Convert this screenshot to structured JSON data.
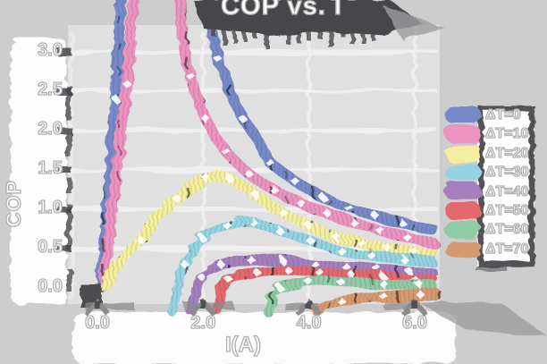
{
  "title": "COP vs. I",
  "figure": {
    "bg": "#cdcdcd",
    "plot_bg": "#e0e0e0",
    "grid_color": "#f2f2f2",
    "ink_color": "#45454a",
    "text_fill": "#ffffff",
    "text_outline": "#b0b0b0"
  },
  "axes": {
    "xlabel": "I(A)",
    "ylabel": "COP",
    "x_ticks": [
      {
        "v": 0,
        "label": "0.0"
      },
      {
        "v": 2,
        "label": "2.0"
      },
      {
        "v": 4,
        "label": "4.0"
      },
      {
        "v": 6,
        "label": "6.0"
      }
    ],
    "y_ticks": [
      {
        "v": 3.0,
        "label": "3.0"
      },
      {
        "v": 2.5,
        "label": "2.5"
      },
      {
        "v": 2.0,
        "label": "2.0"
      },
      {
        "v": 1.5,
        "label": "1.5"
      },
      {
        "v": 1.0,
        "label": "1.0"
      },
      {
        "v": 0.5,
        "label": "0.5"
      },
      {
        "v": 0.0,
        "label": "0.0"
      }
    ]
  },
  "chart_data": {
    "type": "line",
    "title": "COP vs. I",
    "xlabel": "I(A)",
    "ylabel": "COP",
    "xlim": [
      0,
      6.5
    ],
    "ylim": [
      0,
      3.0
    ],
    "grid": true,
    "legend_position": "right",
    "style": "paint-brush ribbons with open diamond markers",
    "series": [
      {
        "name": "ΔT=0",
        "color": "#7689c8",
        "points": [
          [
            0.05,
            0
          ],
          [
            0.2,
            1.1
          ],
          [
            0.35,
            2.4
          ],
          [
            0.5,
            4.4
          ],
          [
            2.02,
            4.4
          ],
          [
            2.18,
            3.2
          ],
          [
            2.3,
            2.9
          ],
          [
            2.5,
            2.5
          ],
          [
            2.75,
            2.15
          ],
          [
            3.0,
            1.92
          ],
          [
            3.25,
            1.6
          ],
          [
            3.5,
            1.47
          ],
          [
            3.75,
            1.35
          ],
          [
            4.0,
            1.25
          ],
          [
            4.25,
            1.16
          ],
          [
            4.5,
            1.08
          ],
          [
            4.75,
            1.02
          ],
          [
            5.0,
            0.97
          ],
          [
            5.25,
            0.92
          ],
          [
            5.5,
            0.87
          ],
          [
            5.75,
            0.83
          ],
          [
            6.0,
            0.79
          ],
          [
            6.35,
            0.74
          ]
        ]
      },
      {
        "name": "ΔT=10",
        "color": "#ec93c0",
        "points": [
          [
            0.1,
            0
          ],
          [
            0.3,
            1.1
          ],
          [
            0.55,
            2.6
          ],
          [
            0.78,
            4.4
          ],
          [
            1.5,
            4.4
          ],
          [
            1.62,
            3.1
          ],
          [
            1.75,
            2.7
          ],
          [
            1.9,
            2.4
          ],
          [
            2.05,
            2.15
          ],
          [
            2.25,
            1.9
          ],
          [
            2.45,
            1.72
          ],
          [
            2.65,
            1.58
          ],
          [
            2.85,
            1.46
          ],
          [
            3.1,
            1.34
          ],
          [
            3.35,
            1.24
          ],
          [
            3.6,
            1.15
          ],
          [
            3.85,
            1.08
          ],
          [
            4.1,
            1.01
          ],
          [
            4.35,
            0.95
          ],
          [
            4.6,
            0.89
          ],
          [
            4.85,
            0.83
          ],
          [
            5.1,
            0.78
          ],
          [
            5.35,
            0.73
          ],
          [
            5.6,
            0.69
          ],
          [
            5.85,
            0.65
          ],
          [
            6.1,
            0.61
          ],
          [
            6.35,
            0.57
          ]
        ]
      },
      {
        "name": "ΔT=20",
        "color": "#f4ef9e",
        "points": [
          [
            0.08,
            0
          ],
          [
            0.4,
            0.3
          ],
          [
            0.8,
            0.62
          ],
          [
            1.2,
            0.94
          ],
          [
            1.5,
            1.14
          ],
          [
            1.8,
            1.3
          ],
          [
            2.05,
            1.4
          ],
          [
            2.25,
            1.43
          ],
          [
            2.5,
            1.39
          ],
          [
            2.75,
            1.3
          ],
          [
            3.0,
            1.18
          ],
          [
            3.25,
            1.06
          ],
          [
            3.5,
            0.96
          ],
          [
            3.75,
            0.87
          ],
          [
            4.0,
            0.79
          ],
          [
            4.25,
            0.72
          ],
          [
            4.5,
            0.66
          ],
          [
            4.75,
            0.61
          ],
          [
            5.0,
            0.57
          ],
          [
            5.25,
            0.53
          ],
          [
            5.5,
            0.5
          ],
          [
            5.75,
            0.48
          ],
          [
            6.0,
            0.46
          ],
          [
            6.35,
            0.44
          ]
        ]
      },
      {
        "name": "ΔT=30",
        "color": "#94d4e2",
        "points": [
          [
            1.42,
            -0.3
          ],
          [
            1.52,
            0.05
          ],
          [
            1.65,
            0.3
          ],
          [
            1.8,
            0.48
          ],
          [
            2.0,
            0.62
          ],
          [
            2.2,
            0.72
          ],
          [
            2.45,
            0.8
          ],
          [
            2.7,
            0.84
          ],
          [
            2.95,
            0.83
          ],
          [
            3.2,
            0.78
          ],
          [
            3.45,
            0.72
          ],
          [
            3.7,
            0.67
          ],
          [
            4.0,
            0.62
          ],
          [
            4.3,
            0.55
          ],
          [
            4.6,
            0.48
          ],
          [
            4.9,
            0.43
          ],
          [
            5.2,
            0.4
          ],
          [
            5.5,
            0.38
          ],
          [
            5.8,
            0.36
          ],
          [
            6.1,
            0.35
          ],
          [
            6.35,
            0.33
          ]
        ]
      },
      {
        "name": "ΔT=40",
        "color": "#a57ebd",
        "points": [
          [
            1.78,
            -0.3
          ],
          [
            1.88,
            -0.02
          ],
          [
            2.0,
            0.12
          ],
          [
            2.15,
            0.22
          ],
          [
            2.35,
            0.29
          ],
          [
            2.6,
            0.34
          ],
          [
            2.9,
            0.36
          ],
          [
            3.2,
            0.36
          ],
          [
            3.5,
            0.35
          ],
          [
            3.8,
            0.33
          ],
          [
            4.1,
            0.31
          ],
          [
            4.4,
            0.29
          ],
          [
            4.7,
            0.27
          ],
          [
            5.0,
            0.26
          ],
          [
            5.3,
            0.24
          ],
          [
            5.6,
            0.23
          ],
          [
            5.9,
            0.21
          ],
          [
            6.35,
            0.19
          ]
        ]
      },
      {
        "name": "ΔT=50",
        "color": "#e4686c",
        "points": [
          [
            2.25,
            -0.3
          ],
          [
            2.35,
            -0.02
          ],
          [
            2.5,
            0.1
          ],
          [
            2.7,
            0.17
          ],
          [
            3.0,
            0.21
          ],
          [
            3.3,
            0.23
          ],
          [
            3.6,
            0.23
          ],
          [
            3.9,
            0.22
          ],
          [
            4.2,
            0.2
          ],
          [
            4.5,
            0.18
          ],
          [
            4.8,
            0.17
          ],
          [
            5.1,
            0.15
          ],
          [
            5.4,
            0.14
          ],
          [
            5.7,
            0.13
          ],
          [
            6.0,
            0.11
          ],
          [
            6.35,
            0.1
          ]
        ]
      },
      {
        "name": "ΔT=60",
        "color": "#90cba6",
        "points": [
          [
            3.22,
            -0.3
          ],
          [
            3.32,
            -0.08
          ],
          [
            3.45,
            0.0
          ],
          [
            3.7,
            0.05
          ],
          [
            4.0,
            0.08
          ],
          [
            4.3,
            0.09
          ],
          [
            4.6,
            0.08
          ],
          [
            5.0,
            0.07
          ],
          [
            5.4,
            0.06
          ],
          [
            5.8,
            0.05
          ],
          [
            6.1,
            0.04
          ],
          [
            6.35,
            0.03
          ]
        ]
      },
      {
        "name": "ΔT=70",
        "color": "#d79a6f",
        "points": [
          [
            4.18,
            -0.3
          ],
          [
            4.3,
            -0.22
          ],
          [
            4.6,
            -0.16
          ],
          [
            5.0,
            -0.12
          ],
          [
            5.4,
            -0.1
          ],
          [
            5.8,
            -0.09
          ],
          [
            6.1,
            -0.08
          ],
          [
            6.4,
            -0.08
          ]
        ]
      }
    ]
  },
  "legend": {
    "items": [
      {
        "label": "ΔT=0",
        "color": "#7689c8"
      },
      {
        "label": "ΔT=10",
        "color": "#ec93c0"
      },
      {
        "label": "ΔT=20",
        "color": "#f4ef9e"
      },
      {
        "label": "ΔT=30",
        "color": "#94d4e2"
      },
      {
        "label": "ΔT=40",
        "color": "#a57ebd"
      },
      {
        "label": "ΔT=50",
        "color": "#e4686c"
      },
      {
        "label": "ΔT=60",
        "color": "#90cba6"
      },
      {
        "label": "ΔT=70",
        "color": "#d79a6f"
      }
    ]
  }
}
